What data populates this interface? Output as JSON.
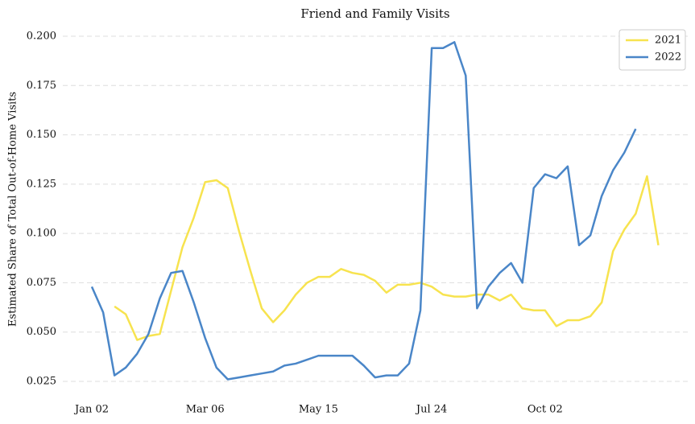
{
  "chart_data": {
    "type": "line",
    "title": "Friend and Family Visits",
    "y_label": "Estimated Share of Total Out-of-Home Visits",
    "categories": [
      "Jan 02",
      null,
      null,
      null,
      null,
      null,
      null,
      null,
      null,
      null,
      "Mar 06",
      null,
      null,
      null,
      null,
      null,
      null,
      null,
      null,
      null,
      "May 15",
      null,
      null,
      null,
      null,
      null,
      null,
      null,
      null,
      null,
      "Jul 24",
      null,
      null,
      null,
      null,
      null,
      null,
      null,
      null,
      null,
      "Oct 02",
      null,
      null,
      null,
      null,
      null,
      null,
      null,
      null,
      null,
      null
    ],
    "series": [
      {
        "name": "2021",
        "color": "#f7e34f",
        "values": [
          null,
          null,
          0.063,
          0.059,
          0.046,
          0.048,
          0.049,
          0.071,
          0.093,
          0.108,
          0.126,
          0.127,
          0.123,
          0.101,
          0.081,
          0.062,
          0.055,
          0.061,
          0.069,
          0.075,
          0.078,
          0.078,
          0.082,
          0.08,
          0.079,
          0.076,
          0.07,
          0.074,
          0.074,
          0.075,
          0.073,
          0.069,
          0.068,
          0.068,
          0.069,
          0.069,
          0.066,
          0.069,
          0.062,
          0.061,
          0.061,
          0.053,
          0.056,
          0.056,
          0.058,
          0.065,
          0.091,
          0.102,
          0.11,
          0.129,
          0.094
        ]
      },
      {
        "name": "2022",
        "color": "#4a86c8",
        "values": [
          0.073,
          0.06,
          0.028,
          0.032,
          0.039,
          0.049,
          0.067,
          0.08,
          0.081,
          0.065,
          0.047,
          0.032,
          0.026,
          0.027,
          0.028,
          0.029,
          0.03,
          0.033,
          0.034,
          0.036,
          0.038,
          0.038,
          0.038,
          0.038,
          0.033,
          0.027,
          0.028,
          0.028,
          0.034,
          0.061,
          0.194,
          0.194,
          0.197,
          0.18,
          0.062,
          0.073,
          0.08,
          0.085,
          0.075,
          0.123,
          0.13,
          0.128,
          0.134,
          0.094,
          0.099,
          0.119,
          0.132,
          0.141,
          0.153,
          null,
          null
        ]
      }
    ],
    "ylim": [
      0.02,
      0.205
    ],
    "yticks": [
      0.025,
      {
        "value": 0.05,
        "label": "0.050"
      },
      0.075,
      {
        "value": 0.1,
        "label": "0.100"
      },
      0.125,
      {
        "value": 0.15,
        "label": "0.150"
      },
      0.175,
      {
        "value": 0.2,
        "label": "0.200"
      }
    ],
    "grid": true,
    "legend": "upper right"
  }
}
